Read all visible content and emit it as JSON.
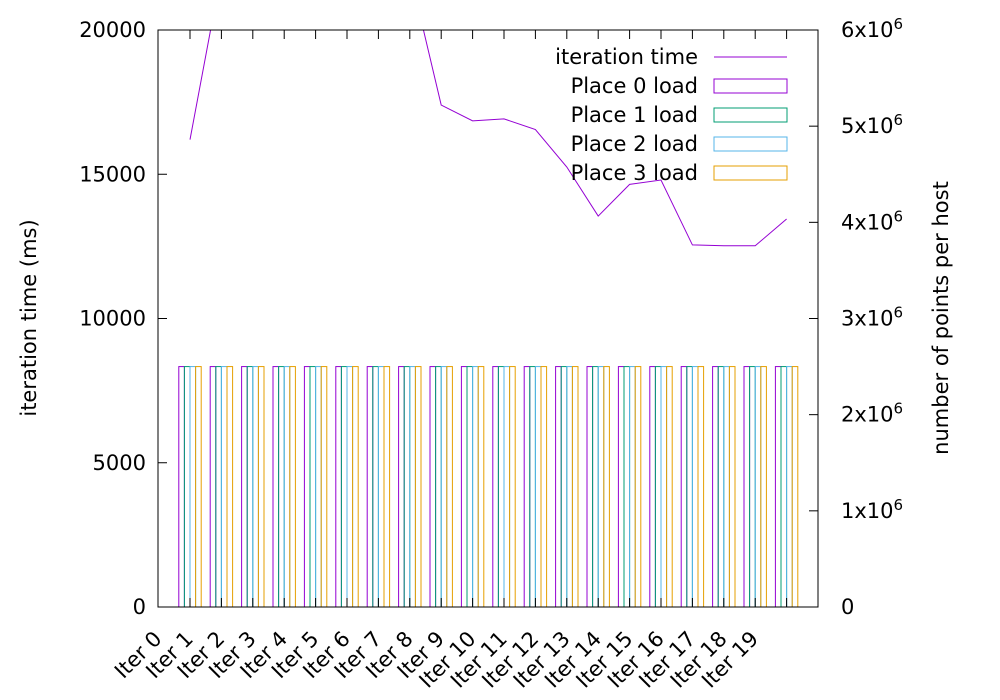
{
  "chart_data": {
    "type": "bar+line",
    "categories": [
      "Iter 0",
      "Iter 1",
      "Iter 2",
      "Iter 3",
      "Iter 4",
      "Iter 5",
      "Iter 6",
      "Iter 7",
      "Iter 8",
      "Iter 9",
      "Iter 10",
      "Iter 11",
      "Iter 12",
      "Iter 13",
      "Iter 14",
      "Iter 15",
      "Iter 16",
      "Iter 17",
      "Iter 18",
      "Iter 19"
    ],
    "line_series": {
      "name": "iteration time",
      "axis": "left",
      "color": "#9400d3",
      "values": [
        16200,
        22000,
        22000,
        22000,
        22000,
        22000,
        22000,
        22000,
        17400,
        16850,
        16920,
        16550,
        15250,
        13550,
        14650,
        14800,
        12550,
        12520,
        12520,
        13450
      ]
    },
    "bar_series": [
      {
        "name": "Place 0 load",
        "axis": "right",
        "color": "#9400d3",
        "values": [
          2500000,
          2500000,
          2500000,
          2500000,
          2500000,
          2500000,
          2500000,
          2500000,
          2500000,
          2500000,
          2500000,
          2500000,
          2500000,
          2500000,
          2500000,
          2500000,
          2500000,
          2500000,
          2500000,
          2500000
        ]
      },
      {
        "name": "Place 1 load",
        "axis": "right",
        "color": "#009e73",
        "values": [
          2500000,
          2500000,
          2500000,
          2500000,
          2500000,
          2500000,
          2500000,
          2500000,
          2500000,
          2500000,
          2500000,
          2500000,
          2500000,
          2500000,
          2500000,
          2500000,
          2500000,
          2500000,
          2500000,
          2500000
        ]
      },
      {
        "name": "Place 2 load",
        "axis": "right",
        "color": "#56b4e9",
        "values": [
          2500000,
          2500000,
          2500000,
          2500000,
          2500000,
          2500000,
          2500000,
          2500000,
          2500000,
          2500000,
          2500000,
          2500000,
          2500000,
          2500000,
          2500000,
          2500000,
          2500000,
          2500000,
          2500000,
          2500000
        ]
      },
      {
        "name": "Place 3 load",
        "axis": "right",
        "color": "#e69f00",
        "values": [
          2500000,
          2500000,
          2500000,
          2500000,
          2500000,
          2500000,
          2500000,
          2500000,
          2500000,
          2500000,
          2500000,
          2500000,
          2500000,
          2500000,
          2500000,
          2500000,
          2500000,
          2500000,
          2500000,
          2500000
        ]
      }
    ],
    "y_left": {
      "label": "iteration time (ms)",
      "range": [
        0,
        20000
      ],
      "ticks": [
        0,
        5000,
        10000,
        15000,
        20000
      ],
      "tick_labels": [
        "0",
        "5000",
        "10000",
        "15000",
        "20000"
      ]
    },
    "y_right": {
      "label": "number of points per host",
      "range": [
        0,
        6000000
      ],
      "ticks": [
        0,
        1000000,
        2000000,
        3000000,
        4000000,
        5000000,
        6000000
      ],
      "tick_labels": [
        {
          "base": "0",
          "exp": ""
        },
        {
          "base": "1x10",
          "exp": "6"
        },
        {
          "base": "2x10",
          "exp": "6"
        },
        {
          "base": "3x10",
          "exp": "6"
        },
        {
          "base": "4x10",
          "exp": "6"
        },
        {
          "base": "5x10",
          "exp": "6"
        },
        {
          "base": "6x10",
          "exp": "6"
        }
      ]
    },
    "legend_position": "top-right",
    "grid": false
  }
}
